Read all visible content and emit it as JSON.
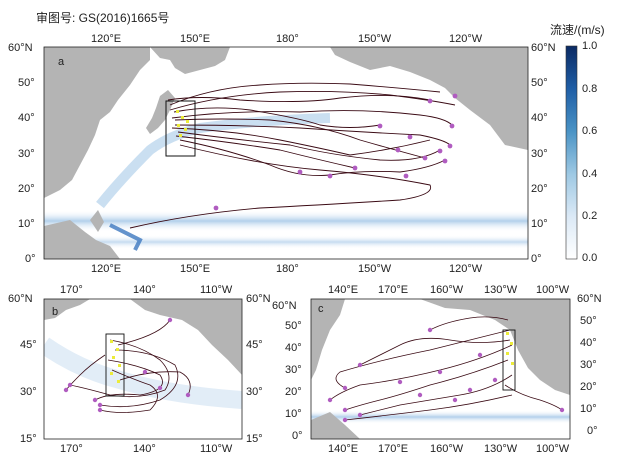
{
  "approval_number": "审图号: GS(2016)1665号",
  "colorbar": {
    "title": "流速/(m/s)",
    "ticks": [
      "1.0",
      "0.8",
      "0.6",
      "0.4",
      "0.2",
      "0.0"
    ],
    "colors": [
      "#ffffff",
      "#dbe9f6",
      "#9dc8e3",
      "#4a93c5",
      "#1f5ea6",
      "#0b2a63"
    ]
  },
  "panels": {
    "a": {
      "label": "a",
      "top_lon_ticks": [
        "120°E",
        "150°E",
        "180°",
        "150°W",
        "120°W"
      ],
      "bottom_lon_ticks": [
        "120°E",
        "150°E",
        "180°",
        "150°W",
        "120°W"
      ],
      "left_lat_ticks": [
        "60°N",
        "50°",
        "40°",
        "30°",
        "20°",
        "10°",
        "0°"
      ],
      "right_lat_ticks": [
        "60°N",
        "50°",
        "40°",
        "30°",
        "20°",
        "10°",
        "0°"
      ]
    },
    "b": {
      "label": "b",
      "top_lon_ticks": [
        "170°",
        "140°",
        "110°W"
      ],
      "bottom_lon_ticks": [
        "170°",
        "140°",
        "110°W"
      ],
      "left_lat_ticks": [
        "60°N",
        "45°",
        "30°",
        "15°"
      ],
      "right_lat_ticks": [
        "60°N",
        "45°",
        "30°",
        "15°"
      ]
    },
    "c": {
      "label": "c",
      "top_lon_ticks": [
        "140°E",
        "170°E",
        "160°W",
        "130°W",
        "100°W"
      ],
      "bottom_lon_ticks": [
        "140°E",
        "170°E",
        "160°W",
        "130°W",
        "100°W"
      ],
      "left_lat_ticks": [
        "60°N",
        "50°",
        "40°",
        "30°",
        "20°",
        "10°",
        "0°"
      ],
      "right_lat_ticks": [
        "60°N",
        "50°",
        "40°",
        "30°",
        "20°",
        "10°",
        "0°"
      ]
    }
  },
  "colors": {
    "land": "#b4b4b4",
    "trajectory": "#3a0a14",
    "endpoint": "#b05cc0",
    "release": "#ecec3a",
    "current_strong": "#5b8fc9"
  }
}
